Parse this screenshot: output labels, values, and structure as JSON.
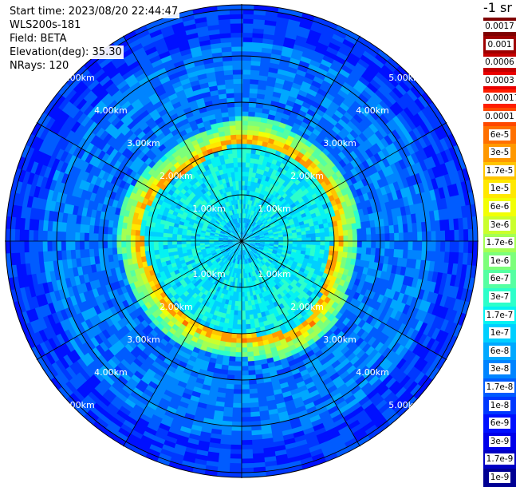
{
  "info": {
    "start_time": "Start time: 2023/08/20 22:44:47",
    "instrument": "WLS200s-181",
    "field": "Field: BETA",
    "elevation": "Elevation(deg): 35.30",
    "nrays": "NRays: 120"
  },
  "colorbar": {
    "unit_label": "-1 sr",
    "labels": [
      "0.0017",
      "0.001",
      "0.0006",
      "0.0003",
      "0.00017",
      "0.0001",
      "6e-5",
      "3e-5",
      "1.7e-5",
      "1e-5",
      "6e-6",
      "3e-6",
      "1.7e-6",
      "1e-6",
      "6e-7",
      "3e-7",
      "1.7e-7",
      "1e-7",
      "6e-8",
      "3e-8",
      "1.7e-8",
      "1e-8",
      "6e-9",
      "3e-9",
      "1.7e-9",
      "1e-9"
    ],
    "colors": [
      "#7f0000",
      "#9e0000",
      "#c40000",
      "#ea0000",
      "#ff1e00",
      "#ff4800",
      "#ff7000",
      "#ff9800",
      "#ffc400",
      "#ffe800",
      "#f2ff05",
      "#caff2d",
      "#a4ff53",
      "#7cff7a",
      "#55ffa2",
      "#2dffca",
      "#05f2f2",
      "#00cfff",
      "#00a8ff",
      "#0084ff",
      "#005cff",
      "#0038ff",
      "#0010ff",
      "#0000ea",
      "#0000c4",
      "#000093"
    ]
  },
  "chart_data": {
    "type": "heatmap",
    "projection": "polar (PPI)",
    "field": "BETA",
    "nrays": 120,
    "elevation_deg": 35.3,
    "range_rings_km": [
      1,
      2,
      3,
      4,
      5
    ],
    "range_ring_labels": [
      "1.00km",
      "2.00km",
      "3.00km",
      "4.00km",
      "5.00km"
    ],
    "max_range_km": 5.1,
    "azimuth_lines_deg": [
      0,
      30,
      60,
      90,
      120,
      150,
      180,
      210,
      240,
      270,
      300,
      330
    ],
    "color_scale": "log",
    "value_range": [
      1e-09,
      0.0017
    ],
    "approximate_field": {
      "inner_core_0_to_0.5km": "1e-7",
      "inner_region_0.5_to_2.1km": "1.7e-7",
      "ring_peak_near_2.1_to_2.2km": "1.7e-5",
      "ring_halo_2.2_to_2.6km": "3e-6",
      "outer_region_2.6_to_4.3km": "3e-8",
      "edge_region_4.3_to_5.1km": "1e-8"
    }
  }
}
